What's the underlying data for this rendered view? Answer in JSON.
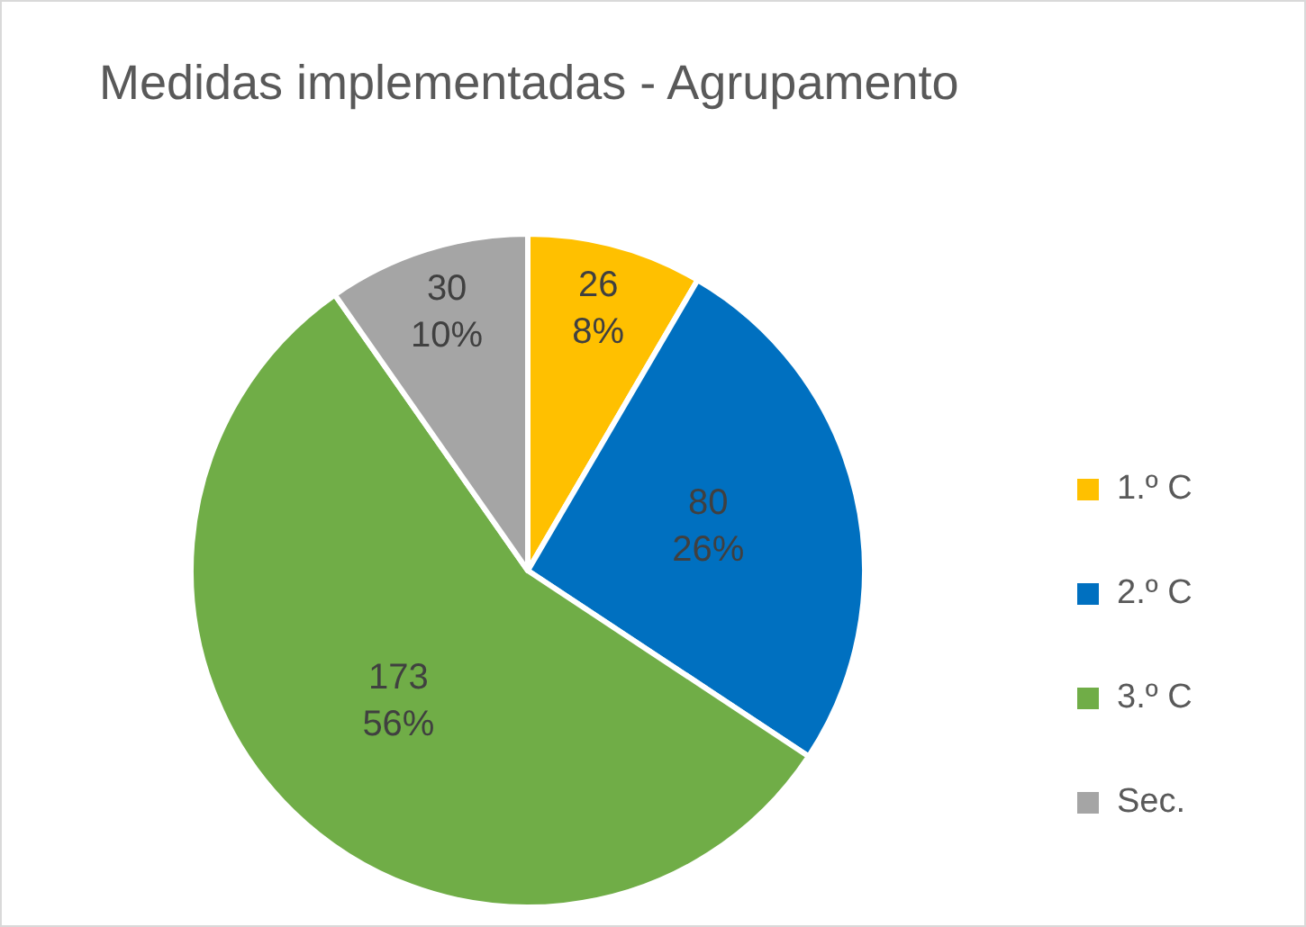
{
  "chart_data": {
    "type": "pie",
    "title": "Medidas implementadas - Agrupamento",
    "categories": [
      "1.º C",
      "2.º C",
      "3.º C",
      "Sec."
    ],
    "values": [
      26,
      80,
      173,
      30
    ],
    "colors": [
      "#ffc000",
      "#0070c0",
      "#70ad47",
      "#a5a5a5"
    ],
    "value_labels": [
      "26\n8%",
      "80\n26%",
      "173\n56%",
      "30\n10%"
    ],
    "legend": "right"
  }
}
